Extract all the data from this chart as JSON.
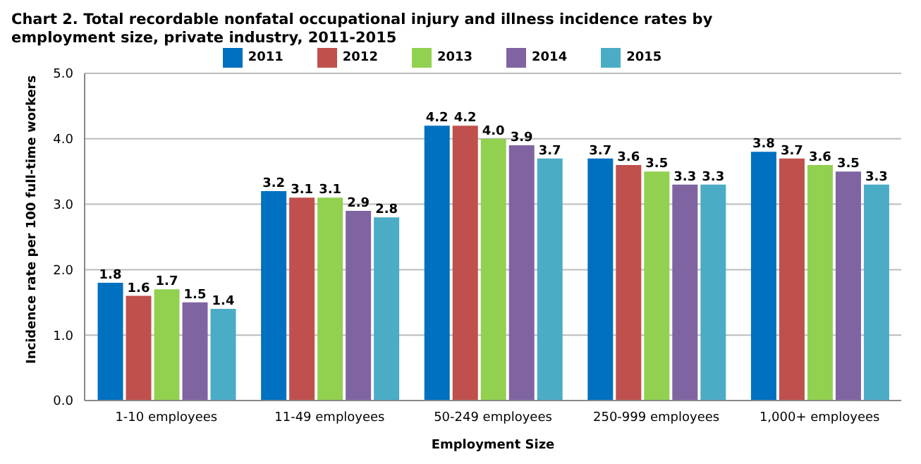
{
  "chart_data": {
    "type": "bar",
    "title": "Chart 2. Total recordable nonfatal occupational injury and illness incidence rates by employment size, private industry, 2011-2015",
    "xlabel": "Employment Size",
    "ylabel": "Incidence rate per 100 full-time workers",
    "categories": [
      "1-10 employees",
      "11-49 employees",
      "50-249 employees",
      "250-999 employees",
      "1,000+ employees"
    ],
    "series": [
      {
        "name": "2011",
        "color": "#0070c0",
        "values": [
          1.8,
          3.2,
          4.2,
          3.7,
          3.8
        ],
        "value_labels": [
          "1.8",
          "3.2",
          "4.2",
          "3.7",
          "3.8"
        ]
      },
      {
        "name": "2012",
        "color": "#c0504d",
        "values": [
          1.6,
          3.1,
          4.2,
          3.6,
          3.7
        ],
        "value_labels": [
          "1.6",
          "3.1",
          "4.2",
          "3.6",
          "3.7"
        ]
      },
      {
        "name": "2013",
        "color": "#92d050",
        "values": [
          1.7,
          3.1,
          4.0,
          3.5,
          3.6
        ],
        "value_labels": [
          "1.7",
          "3.1",
          "4.0",
          "3.5",
          "3.6"
        ]
      },
      {
        "name": "2014",
        "color": "#8064a2",
        "values": [
          1.5,
          2.9,
          3.9,
          3.3,
          3.5
        ],
        "value_labels": [
          "1.5",
          "2.9",
          "3.9",
          "3.3",
          "3.5"
        ]
      },
      {
        "name": "2015",
        "color": "#4bacc6",
        "values": [
          1.4,
          2.8,
          3.7,
          3.3,
          3.3
        ],
        "value_labels": [
          "1.4",
          "2.8",
          "3.7",
          "3.3",
          "3.3"
        ]
      }
    ],
    "ylim": [
      0,
      5
    ],
    "yticks": [
      {
        "value": 0,
        "label": "0.0"
      },
      {
        "value": 1,
        "label": "1.0"
      },
      {
        "value": 2,
        "label": "2.0"
      },
      {
        "value": 3,
        "label": "3.0"
      },
      {
        "value": 4,
        "label": "4.0"
      },
      {
        "value": 5,
        "label": "5.0"
      }
    ],
    "grid": "y",
    "legend": "top"
  }
}
